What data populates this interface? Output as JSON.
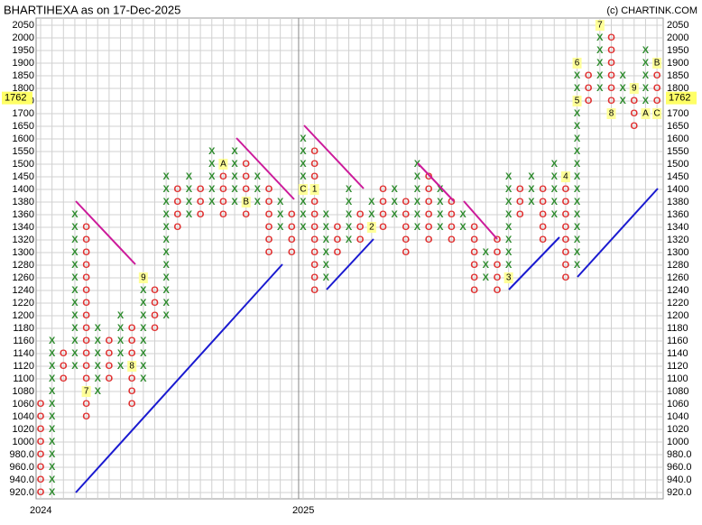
{
  "chart_data": {
    "type": "point-and-figure",
    "title": "BHARTIHEXA as on 17-Dec-2025",
    "source": "(c) CHARTINK.COM",
    "x_color": "#2e8b2e",
    "o_color": "#e03030",
    "yticks": [
      {
        "value": 920,
        "label": "920.0"
      },
      {
        "value": 940,
        "label": "940.0"
      },
      {
        "value": 960,
        "label": "960.0"
      },
      {
        "value": 980,
        "label": "980.0"
      },
      1000,
      1020,
      1040,
      1060,
      1080,
      1100,
      1120,
      1140,
      1160,
      1180,
      1200,
      1220,
      1240,
      1260,
      1280,
      1300,
      1320,
      1340,
      1360,
      1380,
      1400,
      1450,
      1500,
      1550,
      1600,
      1650,
      1700,
      1750,
      1800,
      1850,
      1900,
      1950,
      2000,
      2050
    ],
    "xticks": [
      {
        "value": 0,
        "label": "2024"
      },
      {
        "value": 23,
        "label": "2025"
      }
    ],
    "last_price": 1762,
    "columns": [
      {
        "type": "O",
        "low": 920,
        "high": 1060
      },
      {
        "type": "X",
        "low": 920,
        "high": 1160
      },
      {
        "type": "O",
        "low": 1100,
        "high": 1140
      },
      {
        "type": "X",
        "low": 1120,
        "high": 1360
      },
      {
        "type": "O",
        "low": 1040,
        "high": 1340,
        "markers": [
          {
            "value": 1080,
            "label": "7"
          }
        ]
      },
      {
        "type": "X",
        "low": 1080,
        "high": 1180
      },
      {
        "type": "O",
        "low": 1100,
        "high": 1160
      },
      {
        "type": "X",
        "low": 1120,
        "high": 1200
      },
      {
        "type": "O",
        "low": 1060,
        "high": 1180,
        "markers": [
          {
            "value": 1120,
            "label": "8"
          }
        ]
      },
      {
        "type": "X",
        "low": 1100,
        "high": 1260,
        "markers": [
          {
            "value": 1260,
            "label": "9"
          }
        ]
      },
      {
        "type": "O",
        "low": 1180,
        "high": 1240
      },
      {
        "type": "X",
        "low": 1200,
        "high": 1450
      },
      {
        "type": "O",
        "low": 1340,
        "high": 1400
      },
      {
        "type": "X",
        "low": 1360,
        "high": 1450
      },
      {
        "type": "O",
        "low": 1360,
        "high": 1400
      },
      {
        "type": "X",
        "low": 1380,
        "high": 1550
      },
      {
        "type": "O",
        "low": 1360,
        "high": 1500,
        "markers": [
          {
            "value": 1500,
            "label": "A"
          }
        ]
      },
      {
        "type": "X",
        "low": 1380,
        "high": 1550
      },
      {
        "type": "O",
        "low": 1360,
        "high": 1500,
        "markers": [
          {
            "value": 1380,
            "label": "B"
          }
        ]
      },
      {
        "type": "X",
        "low": 1380,
        "high": 1450
      },
      {
        "type": "O",
        "low": 1300,
        "high": 1400
      },
      {
        "type": "X",
        "low": 1340,
        "high": 1380
      },
      {
        "type": "O",
        "low": 1300,
        "high": 1360
      },
      {
        "type": "X",
        "low": 1340,
        "high": 1600,
        "markers": [
          {
            "value": 1400,
            "label": "C"
          }
        ]
      },
      {
        "type": "O",
        "low": 1240,
        "high": 1550,
        "markers": [
          {
            "value": 1400,
            "label": "1"
          }
        ]
      },
      {
        "type": "X",
        "low": 1260,
        "high": 1360
      },
      {
        "type": "O",
        "low": 1300,
        "high": 1340
      },
      {
        "type": "X",
        "low": 1320,
        "high": 1400
      },
      {
        "type": "O",
        "low": 1320,
        "high": 1360
      },
      {
        "type": "X",
        "low": 1340,
        "high": 1380,
        "markers": [
          {
            "value": 1340,
            "label": "2"
          }
        ]
      },
      {
        "type": "O",
        "low": 1340,
        "high": 1400
      },
      {
        "type": "X",
        "low": 1360,
        "high": 1400
      },
      {
        "type": "O",
        "low": 1300,
        "high": 1380
      },
      {
        "type": "X",
        "low": 1340,
        "high": 1500
      },
      {
        "type": "O",
        "low": 1320,
        "high": 1450
      },
      {
        "type": "X",
        "low": 1340,
        "high": 1400
      },
      {
        "type": "O",
        "low": 1320,
        "high": 1380
      },
      {
        "type": "X",
        "low": 1340,
        "high": 1360
      },
      {
        "type": "O",
        "low": 1240,
        "high": 1340
      },
      {
        "type": "X",
        "low": 1260,
        "high": 1300
      },
      {
        "type": "O",
        "low": 1240,
        "high": 1320
      },
      {
        "type": "X",
        "low": 1260,
        "high": 1450,
        "markers": [
          {
            "value": 1260,
            "label": "3"
          }
        ]
      },
      {
        "type": "O",
        "low": 1360,
        "high": 1400
      },
      {
        "type": "X",
        "low": 1380,
        "high": 1450
      },
      {
        "type": "O",
        "low": 1320,
        "high": 1400
      },
      {
        "type": "X",
        "low": 1360,
        "high": 1500
      },
      {
        "type": "O",
        "low": 1260,
        "high": 1450,
        "markers": [
          {
            "value": 1450,
            "label": "4"
          }
        ]
      },
      {
        "type": "X",
        "low": 1280,
        "high": 1900,
        "markers": [
          {
            "value": 1750,
            "label": "5"
          },
          {
            "value": 1900,
            "label": "6"
          }
        ]
      },
      {
        "type": "O",
        "low": 1750,
        "high": 1850
      },
      {
        "type": "X",
        "low": 1800,
        "high": 2050,
        "markers": [
          {
            "value": 2050,
            "label": "7"
          }
        ]
      },
      {
        "type": "O",
        "low": 1700,
        "high": 2000,
        "markers": [
          {
            "value": 1700,
            "label": "8"
          }
        ]
      },
      {
        "type": "X",
        "low": 1750,
        "high": 1850
      },
      {
        "type": "O",
        "low": 1650,
        "high": 1800,
        "markers": [
          {
            "value": 1800,
            "label": "9"
          }
        ]
      },
      {
        "type": "X",
        "low": 1700,
        "high": 1950,
        "markers": [
          {
            "value": 1700,
            "label": "A"
          }
        ]
      },
      {
        "type": "O",
        "low": 1700,
        "high": 1900,
        "markers": [
          {
            "value": 1900,
            "label": "B"
          },
          {
            "value": 1700,
            "label": "C"
          }
        ]
      }
    ]
  }
}
